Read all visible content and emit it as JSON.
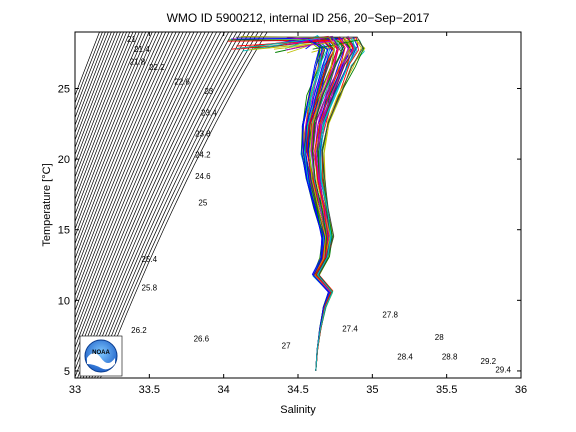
{
  "chart_data": {
    "type": "line",
    "title": "WMO ID 5900212, internal ID 256, 20−Sep−2017",
    "xlabel": "Salinity",
    "ylabel": "Temperature [°C]",
    "xlim": [
      33,
      36
    ],
    "ylim": [
      4.5,
      29
    ],
    "grid": false,
    "legend": "none",
    "x_ticks": [
      "33",
      "33.5",
      "34",
      "34.5",
      "35",
      "35.5",
      "36"
    ],
    "y_ticks": [
      "5",
      "10",
      "15",
      "20",
      "25"
    ],
    "isopycnal_labels": [
      "21",
      "21.4",
      "21.8",
      "22.2",
      "22.6",
      "23",
      "23.4",
      "23.8",
      "24.2",
      "24.6",
      "25",
      "25.4",
      "25.8",
      "26.2",
      "26.6",
      "27",
      "27.4",
      "27.8",
      "28",
      "28.4",
      "28.8",
      "29.2",
      "29.4"
    ],
    "profile_count": 60,
    "typical_profile": {
      "x": [
        34.62,
        34.63,
        34.65,
        34.68,
        34.72,
        34.62,
        34.68,
        34.7,
        34.66,
        34.62,
        34.6,
        34.62,
        34.68,
        34.75,
        34.8,
        34.75
      ],
      "y": [
        5.0,
        6.5,
        8.0,
        9.5,
        10.6,
        11.8,
        13.0,
        14.5,
        16.5,
        18.5,
        20.5,
        22.5,
        24.5,
        26.5,
        27.8,
        28.5
      ]
    },
    "colors": {
      "profiles": [
        "#0000ff",
        "#008000",
        "#ff0000",
        "#00bfbf",
        "#bf00bf",
        "#bfbf00",
        "#404040"
      ],
      "isopycnals": "#000000",
      "noaa_logo_blue": "#1e60c8"
    },
    "logo": "NOAA"
  }
}
